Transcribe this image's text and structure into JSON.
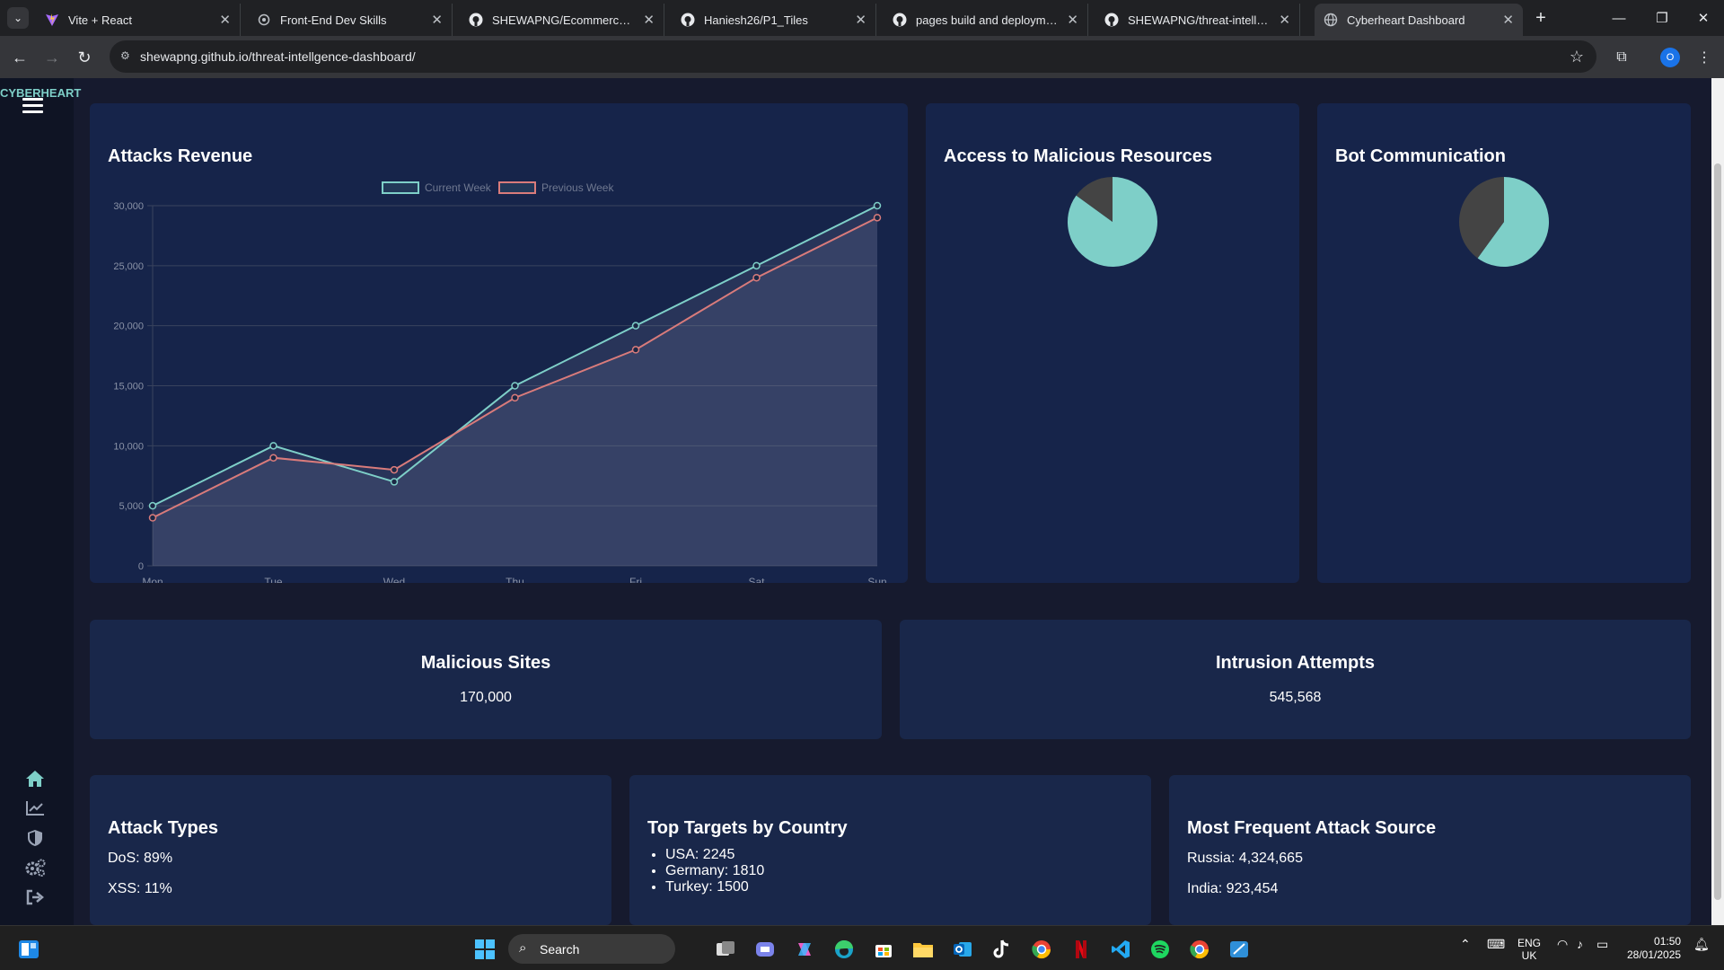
{
  "browser": {
    "tabs": [
      {
        "title": "Vite + React",
        "icon": "vite-icon"
      },
      {
        "title": "Front-End Dev Skills",
        "icon": "site-icon"
      },
      {
        "title": "SHEWAPNG/Ecommercebook-r",
        "icon": "github-icon"
      },
      {
        "title": "Haniesh26/P1_Tiles",
        "icon": "github-icon"
      },
      {
        "title": "pages build and deployment · S",
        "icon": "github-icon"
      },
      {
        "title": "SHEWAPNG/threat-intellgence",
        "icon": "github-icon"
      },
      {
        "title": "Cyberheart Dashboard",
        "icon": "globe-icon"
      }
    ],
    "url": "shewapng.github.io/threat-intellgence-dashboard/",
    "profile_letter": "O"
  },
  "app": {
    "brand": "CYBERHEART",
    "cards": {
      "attacks_revenue": {
        "title": "Attacks Revenue"
      },
      "malicious_resources": {
        "title": "Access to Malicious Resources"
      },
      "bot_communication": {
        "title": "Bot Communication"
      },
      "malicious_sites": {
        "title": "Malicious Sites",
        "value": "170,000"
      },
      "intrusion_attempts": {
        "title": "Intrusion Attempts",
        "value": "545,568"
      },
      "attack_types": {
        "title": "Attack Types",
        "items": [
          "DoS: 89%",
          "XSS: 11%"
        ]
      },
      "top_targets": {
        "title": "Top Targets by Country",
        "items": [
          "USA: 2245",
          "Germany: 1810",
          "Turkey: 1500"
        ]
      },
      "attack_source": {
        "title": "Most Frequent Attack Source",
        "items": [
          "Russia: 4,324,665",
          "India: 923,454"
        ]
      }
    }
  },
  "chart_data": [
    {
      "type": "line",
      "title": "Attacks Revenue",
      "categories": [
        "Mon",
        "Tue",
        "Wed",
        "Thu",
        "Fri",
        "Sat",
        "Sun"
      ],
      "series": [
        {
          "name": "Current Week",
          "values": [
            5000,
            10000,
            7000,
            15000,
            20000,
            25000,
            30000
          ],
          "color": "#7ecfc8"
        },
        {
          "name": "Previous Week",
          "values": [
            4000,
            9000,
            8000,
            14000,
            18000,
            24000,
            29000
          ],
          "color": "#d97b7b"
        }
      ],
      "ylim": [
        0,
        30000
      ],
      "yticks": [
        "0",
        "5,000",
        "10,000",
        "15,000",
        "20,000",
        "25,000",
        "30,000"
      ],
      "grid": true,
      "legend": "top-center"
    },
    {
      "type": "pie",
      "title": "Access to Malicious Resources",
      "values": [
        85,
        15
      ],
      "colors": [
        "#7ecfc8",
        "#444444"
      ]
    },
    {
      "type": "pie",
      "title": "Bot Communication",
      "values": [
        60,
        40
      ],
      "colors": [
        "#7ecfc8",
        "#444444"
      ]
    }
  ],
  "taskbar": {
    "search_label": "Search",
    "lang_top": "ENG",
    "lang_bottom": "UK",
    "time": "01:50",
    "date": "28/01/2025"
  }
}
